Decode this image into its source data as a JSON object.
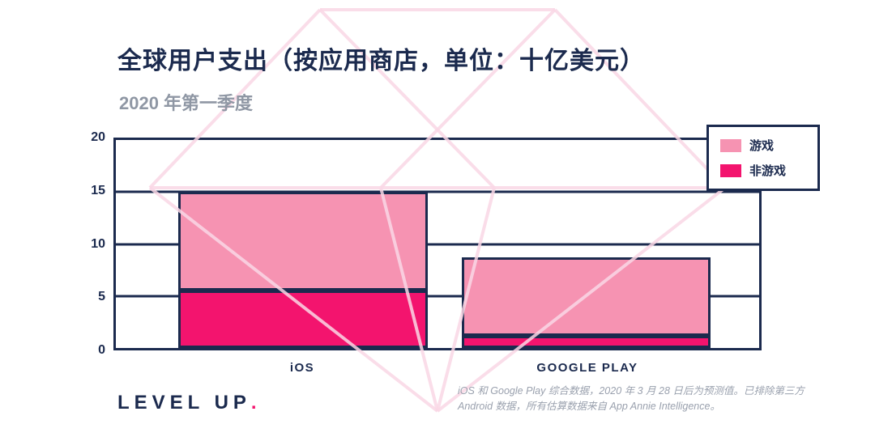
{
  "header": {
    "title": "全球用户支出（按应用商店，单位：十亿美元）",
    "subtitle": "2020 年第一季度"
  },
  "chart_data": {
    "type": "bar",
    "stacked": true,
    "title": "全球用户支出（按应用商店，单位：十亿美元）",
    "subtitle": "2020 年第一季度",
    "unit": "十亿美元",
    "categories": [
      "iOS",
      "GOOGLE PLAY"
    ],
    "series": [
      {
        "name": "非游戏",
        "color": "#f3146e",
        "values": [
          5.5,
          1.2
        ]
      },
      {
        "name": "游戏",
        "color": "#f693b2",
        "values": [
          9.5,
          7.5
        ]
      }
    ],
    "totals": [
      15,
      8.7
    ],
    "ylim": [
      0,
      20
    ],
    "yticks": [
      0,
      5,
      10,
      15,
      20
    ],
    "grid": true,
    "legend_position": "top-right",
    "legend": [
      {
        "label": "游戏",
        "color": "#f693b2"
      },
      {
        "label": "非游戏",
        "color": "#f3146e"
      }
    ]
  },
  "footer": {
    "logo_text": "LEVEL UP",
    "logo_dot": ".",
    "footnote_line1": "iOS 和 Google Play 综合数据，2020 年 3 月 28 日后为预测值。已排除第三方",
    "footnote_line2": "Android 数据，所有估算数据来自 App Annie Intelligence。"
  },
  "colors": {
    "navy": "#1b2a4e",
    "magenta": "#f3146e",
    "light_pink": "#f693b2",
    "watermark_pink": "#f9d7e5",
    "subtitle_gray": "#8f97a4",
    "footnote_gray": "#9aa1ae"
  }
}
